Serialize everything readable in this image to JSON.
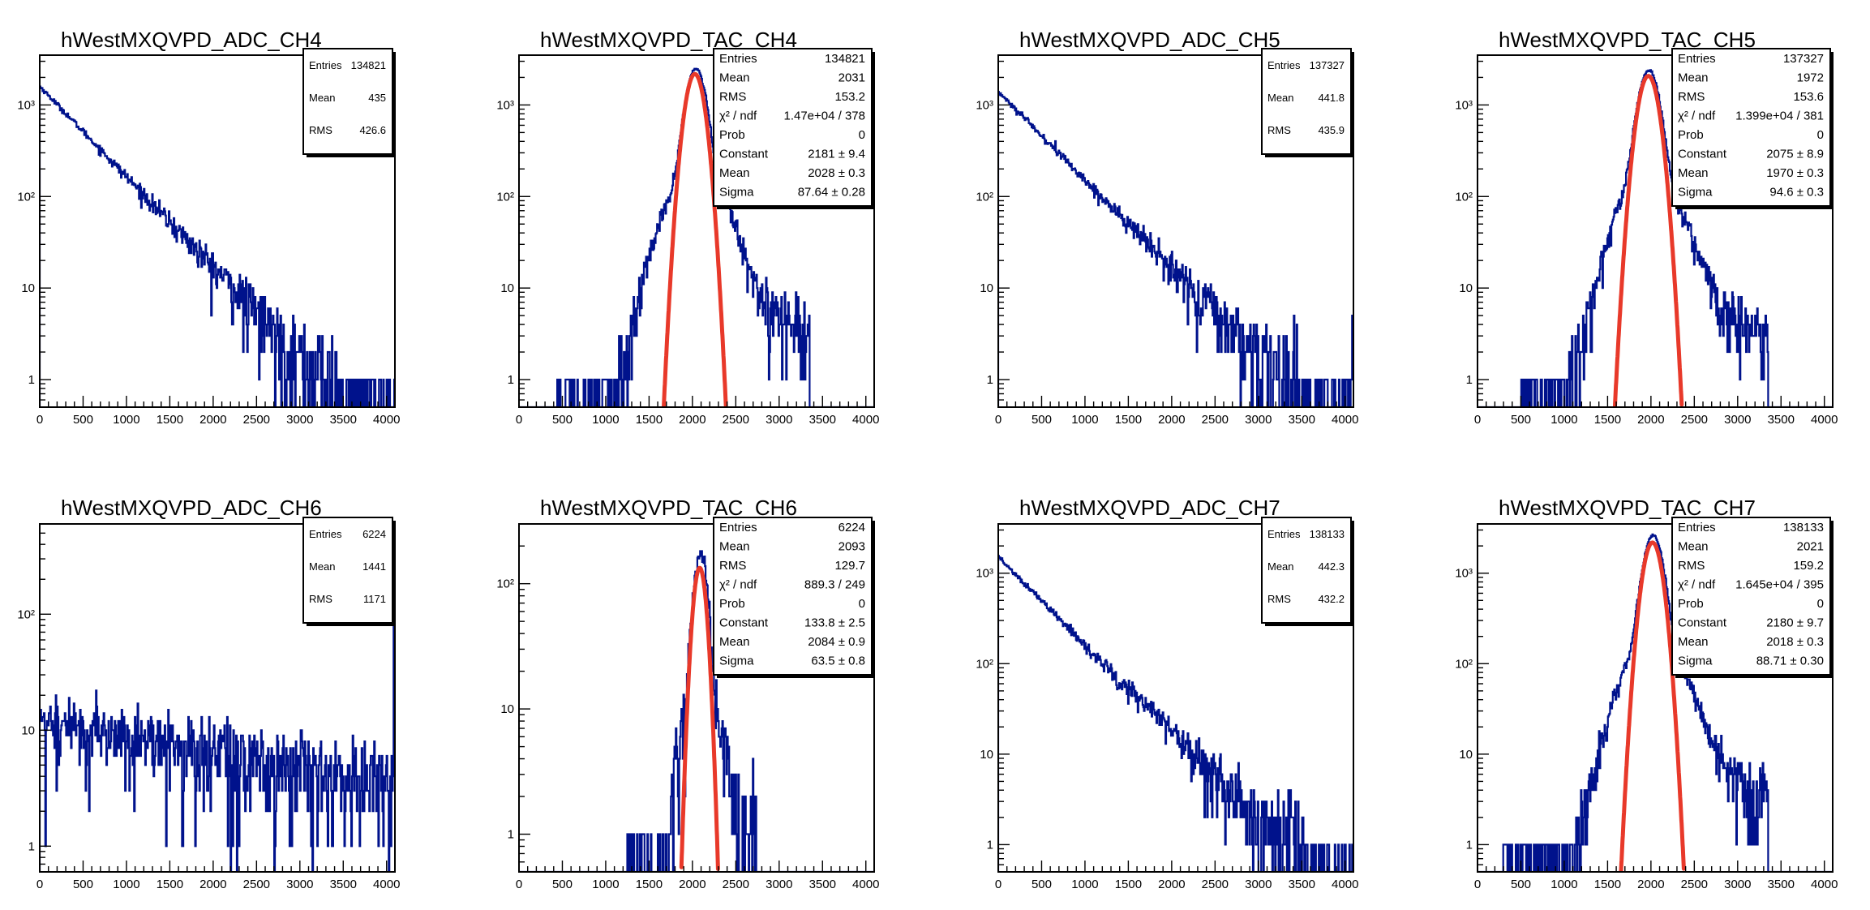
{
  "colors": {
    "hist": "#00128C",
    "fit": "#E8392A",
    "axis": "#000000",
    "background": "#FFFFFF"
  },
  "chart_data": [
    {
      "type": "histogram",
      "title": "hWestMXQVPD_ADC_CH4",
      "xlabel": "",
      "ylabel": "",
      "x_range": [
        0,
        4096
      ],
      "x_ticks": [
        0,
        500,
        1000,
        1500,
        2000,
        2500,
        3000,
        3500,
        4000
      ],
      "y_scale": "log",
      "y_range": [
        0.5,
        3500
      ],
      "y_ticks": [
        1,
        10,
        100,
        1000
      ],
      "y_tick_labels": [
        "1",
        "10",
        "10²",
        "10³"
      ],
      "shape": "exp_decay",
      "peak_value": 1600,
      "decay_scale": 440,
      "last_bin_spike": 0,
      "stats": [
        {
          "label": "Entries",
          "value": "134821"
        },
        {
          "label": "Mean",
          "value": "435"
        },
        {
          "label": "RMS",
          "value": "426.6"
        }
      ]
    },
    {
      "type": "histogram",
      "title": "hWestMXQVPD_TAC_CH4",
      "xlabel": "",
      "ylabel": "",
      "x_range": [
        0,
        4096
      ],
      "x_ticks": [
        0,
        500,
        1000,
        1500,
        2000,
        2500,
        3000,
        3500,
        4000
      ],
      "y_scale": "log",
      "y_range": [
        0.5,
        3500
      ],
      "y_ticks": [
        1,
        10,
        100,
        1000
      ],
      "y_tick_labels": [
        "1",
        "10",
        "10²",
        "10³"
      ],
      "shape": "peaked",
      "data_peak": 2300,
      "data_mean": 2040,
      "core_sigma": 90,
      "tail_sigma": 260,
      "x_min_data": 400,
      "x_max_data": 3350,
      "fit": {
        "function": "gaus",
        "constant": 2181,
        "mean": 2028,
        "sigma": 87.64
      },
      "stats": [
        {
          "label": "Entries",
          "value": "134821"
        },
        {
          "label": "Mean",
          "value": "2031"
        },
        {
          "label": "RMS",
          "value": "153.2"
        },
        {
          "label": "χ² / ndf",
          "value": "1.47e+04 / 378"
        },
        {
          "label": "Prob",
          "value": "0"
        },
        {
          "label": "Constant",
          "value": "2181 ± 9.4"
        },
        {
          "label": "Mean",
          "value": "2028 ± 0.3"
        },
        {
          "label": "Sigma",
          "value": "87.64 ± 0.28"
        }
      ]
    },
    {
      "type": "histogram",
      "title": "hWestMXQVPD_ADC_CH5",
      "xlabel": "",
      "ylabel": "",
      "x_range": [
        0,
        4096
      ],
      "x_ticks": [
        0,
        500,
        1000,
        1500,
        2000,
        2500,
        3000,
        3500,
        4000
      ],
      "y_scale": "log",
      "y_range": [
        0.5,
        3500
      ],
      "y_ticks": [
        1,
        10,
        100,
        1000
      ],
      "y_tick_labels": [
        "1",
        "10",
        "10²",
        "10³"
      ],
      "shape": "exp_decay",
      "peak_value": 1400,
      "decay_scale": 450,
      "last_bin_spike": 5,
      "stats": [
        {
          "label": "Entries",
          "value": "137327"
        },
        {
          "label": "Mean",
          "value": "441.8"
        },
        {
          "label": "RMS",
          "value": "435.9"
        }
      ]
    },
    {
      "type": "histogram",
      "title": "hWestMXQVPD_TAC_CH5",
      "xlabel": "",
      "ylabel": "",
      "x_range": [
        0,
        4096
      ],
      "x_ticks": [
        0,
        500,
        1000,
        1500,
        2000,
        2500,
        3000,
        3500,
        4000
      ],
      "y_scale": "log",
      "y_range": [
        0.5,
        3500
      ],
      "y_ticks": [
        1,
        10,
        100,
        1000
      ],
      "y_tick_labels": [
        "1",
        "10",
        "10²",
        "10³"
      ],
      "shape": "peaked",
      "data_peak": 2200,
      "data_mean": 1975,
      "core_sigma": 95,
      "tail_sigma": 260,
      "x_min_data": 500,
      "x_max_data": 3350,
      "fit": {
        "function": "gaus",
        "constant": 2075,
        "mean": 1970,
        "sigma": 94.6
      },
      "stats": [
        {
          "label": "Entries",
          "value": "137327"
        },
        {
          "label": "Mean",
          "value": "1972"
        },
        {
          "label": "RMS",
          "value": "153.6"
        },
        {
          "label": "χ² / ndf",
          "value": "1.399e+04 / 381"
        },
        {
          "label": "Prob",
          "value": "0"
        },
        {
          "label": "Constant",
          "value": "2075 ± 8.9"
        },
        {
          "label": "Mean",
          "value": "1970 ± 0.3"
        },
        {
          "label": "Sigma",
          "value": "94.6 ± 0.3"
        }
      ]
    },
    {
      "type": "histogram",
      "title": "hWestMXQVPD_ADC_CH6",
      "xlabel": "",
      "ylabel": "",
      "x_range": [
        0,
        4096
      ],
      "x_ticks": [
        0,
        500,
        1000,
        1500,
        2000,
        2500,
        3000,
        3500,
        4000
      ],
      "y_scale": "log",
      "y_range": [
        0.6,
        600
      ],
      "y_ticks": [
        1,
        10,
        100
      ],
      "y_tick_labels": [
        "1",
        "10",
        "10²"
      ],
      "shape": "flat_decay",
      "peak_value": 12,
      "decay_scale": 3200,
      "last_bin_spike": 100,
      "stats": [
        {
          "label": "Entries",
          "value": "6224"
        },
        {
          "label": "Mean",
          "value": "1441"
        },
        {
          "label": "RMS",
          "value": "1171"
        }
      ]
    },
    {
      "type": "histogram",
      "title": "hWestMXQVPD_TAC_CH6",
      "xlabel": "",
      "ylabel": "",
      "x_range": [
        0,
        4096
      ],
      "x_ticks": [
        0,
        500,
        1000,
        1500,
        2000,
        2500,
        3000,
        3500,
        4000
      ],
      "y_scale": "log",
      "y_range": [
        0.5,
        300
      ],
      "y_ticks": [
        1,
        10,
        100
      ],
      "y_tick_labels": [
        "1",
        "10",
        "10²"
      ],
      "shape": "peaked",
      "data_peak": 160,
      "data_mean": 2095,
      "core_sigma": 65,
      "tail_sigma": 170,
      "x_min_data": 1250,
      "x_max_data": 2750,
      "fit": {
        "function": "gaus",
        "constant": 133.8,
        "mean": 2084,
        "sigma": 63.5
      },
      "stats": [
        {
          "label": "Entries",
          "value": "6224"
        },
        {
          "label": "Mean",
          "value": "2093"
        },
        {
          "label": "RMS",
          "value": "129.7"
        },
        {
          "label": "χ² / ndf",
          "value": "889.3 / 249"
        },
        {
          "label": "Prob",
          "value": "0"
        },
        {
          "label": "Constant",
          "value": "133.8 ± 2.5"
        },
        {
          "label": "Mean",
          "value": "2084 ± 0.9"
        },
        {
          "label": "Sigma",
          "value": "63.5 ± 0.8"
        }
      ]
    },
    {
      "type": "histogram",
      "title": "hWestMXQVPD_ADC_CH7",
      "xlabel": "",
      "ylabel": "",
      "x_range": [
        0,
        4096
      ],
      "x_ticks": [
        0,
        500,
        1000,
        1500,
        2000,
        2500,
        3000,
        3500,
        4000
      ],
      "y_scale": "log",
      "y_range": [
        0.5,
        3500
      ],
      "y_ticks": [
        1,
        10,
        100,
        1000
      ],
      "y_tick_labels": [
        "1",
        "10",
        "10²",
        "10³"
      ],
      "shape": "exp_decay",
      "peak_value": 1500,
      "decay_scale": 450,
      "last_bin_spike": 0,
      "stats": [
        {
          "label": "Entries",
          "value": "138133"
        },
        {
          "label": "Mean",
          "value": "442.3"
        },
        {
          "label": "RMS",
          "value": "432.2"
        }
      ]
    },
    {
      "type": "histogram",
      "title": "hWestMXQVPD_TAC_CH7",
      "xlabel": "",
      "ylabel": "",
      "x_range": [
        0,
        4096
      ],
      "x_ticks": [
        0,
        500,
        1000,
        1500,
        2000,
        2500,
        3000,
        3500,
        4000
      ],
      "y_scale": "log",
      "y_range": [
        0.5,
        3500
      ],
      "y_ticks": [
        1,
        10,
        100,
        1000
      ],
      "y_tick_labels": [
        "1",
        "10",
        "10²",
        "10³"
      ],
      "shape": "peaked",
      "data_peak": 2400,
      "data_mean": 2025,
      "core_sigma": 90,
      "tail_sigma": 260,
      "x_min_data": 300,
      "x_max_data": 3350,
      "fit": {
        "function": "gaus",
        "constant": 2180,
        "mean": 2018,
        "sigma": 88.71
      },
      "stats": [
        {
          "label": "Entries",
          "value": "138133"
        },
        {
          "label": "Mean",
          "value": "2021"
        },
        {
          "label": "RMS",
          "value": "159.2"
        },
        {
          "label": "χ² / ndf",
          "value": "1.645e+04 / 395"
        },
        {
          "label": "Prob",
          "value": "0"
        },
        {
          "label": "Constant",
          "value": "2180 ± 9.7"
        },
        {
          "label": "Mean",
          "value": "2018 ± 0.3"
        },
        {
          "label": "Sigma",
          "value": "88.71 ± 0.30"
        }
      ]
    }
  ]
}
